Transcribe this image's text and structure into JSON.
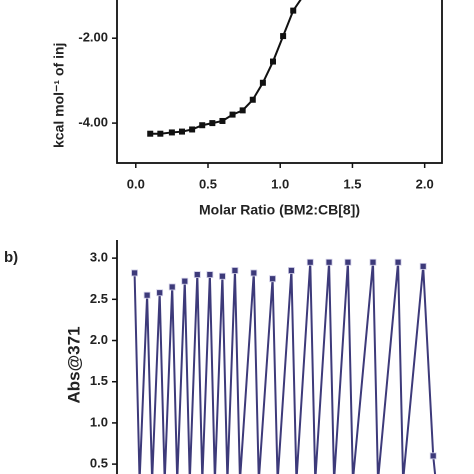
{
  "chart_data": [
    {
      "type": "line",
      "y_label": "kcal mol⁻¹ of inj",
      "x_label": "Molar Ratio (BM2:CB[8])",
      "x": [
        0.1,
        0.17,
        0.25,
        0.32,
        0.39,
        0.46,
        0.53,
        0.6,
        0.67,
        0.74,
        0.81,
        0.88,
        0.95,
        1.02,
        1.09,
        1.16
      ],
      "series": [
        {
          "color": "#111111",
          "values": [
            -4.25,
            -4.25,
            -4.22,
            -4.2,
            -4.15,
            -4.05,
            -4.0,
            -3.95,
            -3.8,
            -3.7,
            -3.45,
            -3.05,
            -2.55,
            -1.95,
            -1.35,
            -1.0
          ]
        }
      ],
      "xlim": [
        -0.13,
        2.12
      ],
      "xticks": [
        {
          "value": 0,
          "label": "0.0"
        },
        0.5,
        {
          "value": 1,
          "label": "1.0"
        },
        1.5,
        {
          "value": 2,
          "label": "2.0"
        }
      ],
      "ylim": [
        -4.94,
        -1.1
      ],
      "yticks": [
        {
          "value": -2,
          "label": "-2.00"
        },
        {
          "value": -4,
          "label": "-4.00"
        }
      ]
    },
    {
      "type": "line",
      "panel_label": "b)",
      "y_label": "Abs@371",
      "x": [
        0,
        0.4,
        1,
        1.4,
        2,
        2.4,
        3,
        3.4,
        4,
        4.4,
        5,
        5.4,
        6,
        6.4,
        7,
        7.4,
        8,
        8.4,
        9.5,
        9.9,
        11,
        11.4,
        12.5,
        12.9,
        14,
        14.4,
        15.5,
        15.9,
        17,
        17.4,
        19,
        19.4,
        21,
        21.4,
        23,
        23.8,
        24
      ],
      "series": [
        {
          "color": "#3d3a7a",
          "values": [
            2.82,
            0.3,
            2.55,
            0.3,
            2.58,
            0.3,
            2.65,
            0.3,
            2.72,
            0.3,
            2.8,
            0.3,
            2.8,
            0.3,
            2.78,
            0.3,
            2.85,
            0.3,
            2.82,
            0.3,
            2.75,
            0.3,
            2.85,
            0.3,
            2.95,
            0.3,
            2.95,
            0.3,
            2.95,
            0.3,
            2.95,
            0.3,
            2.95,
            0.3,
            2.9,
            0.6,
            0.3
          ]
        }
      ],
      "xlim": [
        -1.4,
        24.5
      ],
      "ylim": [
        0.38,
        3.22
      ],
      "yticks": [
        3.0,
        2.5,
        2.0,
        1.5,
        1.0,
        0.5
      ]
    }
  ]
}
